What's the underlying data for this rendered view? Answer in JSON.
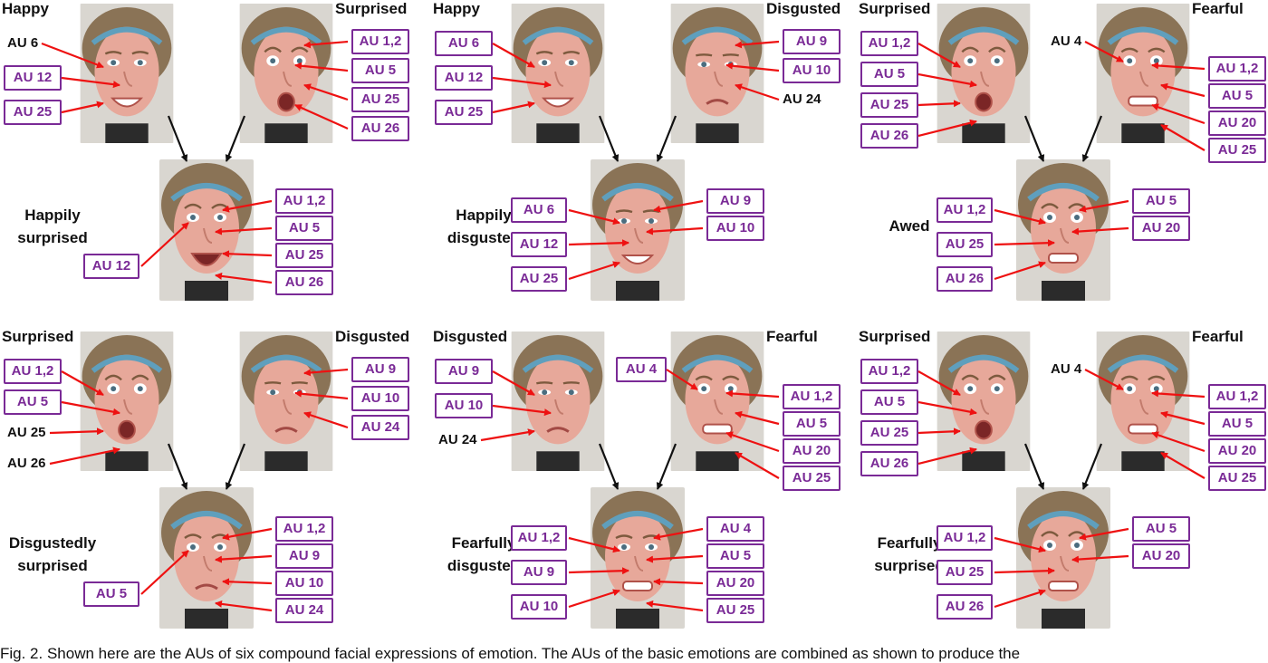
{
  "colors": {
    "box_border": "#7a2a96",
    "arrow_red": "#ee1111",
    "arrow_black": "#111111"
  },
  "panels": [
    {
      "top_left_label": "Happy",
      "top_right_label": "Surprised",
      "compound_label": [
        "Happily",
        "surprised"
      ],
      "left_face_aus": [
        "AU 6",
        "AU 12",
        "AU 25"
      ],
      "right_face_aus": [
        "AU 1,2",
        "AU 5",
        "AU 25",
        "AU 26"
      ],
      "compound_aus": [
        "AU 1,2",
        "AU 5",
        "AU 25",
        "AU 26",
        "AU 12"
      ]
    },
    {
      "top_left_label": "Happy",
      "top_right_label": "Disgusted",
      "compound_label": [
        "Happily",
        "disgusted"
      ],
      "left_face_aus": [
        "AU 6",
        "AU 12",
        "AU 25"
      ],
      "right_face_aus": [
        "AU 9",
        "AU 10",
        "AU 24"
      ],
      "compound_aus": [
        "AU 6",
        "AU 12",
        "AU 25",
        "AU 9",
        "AU 10"
      ]
    },
    {
      "top_left_label": "Surprised",
      "top_right_label": "Fearful",
      "compound_label": [
        "Awed"
      ],
      "left_face_aus": [
        "AU 1,2",
        "AU 5",
        "AU 25",
        "AU 26"
      ],
      "right_face_aus": [
        "AU 4",
        "AU 1,2",
        "AU 5",
        "AU 20",
        "AU 25"
      ],
      "compound_aus": [
        "AU 1,2",
        "AU 5",
        "AU 25",
        "AU 20",
        "AU 26"
      ]
    },
    {
      "top_left_label": "Surprised",
      "top_right_label": "Disgusted",
      "compound_label": [
        "Disgustedly",
        "surprised"
      ],
      "left_face_aus": [
        "AU 1,2",
        "AU 5",
        "AU 25",
        "AU 26"
      ],
      "right_face_aus": [
        "AU 9",
        "AU 10",
        "AU 24"
      ],
      "compound_aus": [
        "AU 1,2",
        "AU 9",
        "AU 10",
        "AU 24",
        "AU 5"
      ]
    },
    {
      "top_left_label": "Disgusted",
      "top_right_label": "Fearful",
      "compound_label": [
        "Fearfully",
        "disgusted"
      ],
      "left_face_aus": [
        "AU 9",
        "AU 10",
        "AU 24"
      ],
      "right_face_aus": [
        "AU 4",
        "AU 1,2",
        "AU 5",
        "AU 20",
        "AU 25"
      ],
      "compound_aus": [
        "AU 1,2",
        "AU 9",
        "AU 10",
        "AU 4",
        "AU 5",
        "AU 20",
        "AU 25"
      ]
    },
    {
      "top_left_label": "Surprised",
      "top_right_label": "Fearful",
      "compound_label": [
        "Fearfully",
        "surprised"
      ],
      "left_face_aus": [
        "AU 1,2",
        "AU 5",
        "AU 25",
        "AU 26"
      ],
      "right_face_aus": [
        "AU 4",
        "AU 1,2",
        "AU 5",
        "AU 20",
        "AU 25"
      ],
      "compound_aus": [
        "AU 1,2",
        "AU 5",
        "AU 25",
        "AU 26",
        "AU 20"
      ]
    }
  ],
  "caption": "Fig. 2.   Shown here are the AUs of six compound facial expressions of emotion. The AUs of the basic emotions are combined as shown to produce the"
}
